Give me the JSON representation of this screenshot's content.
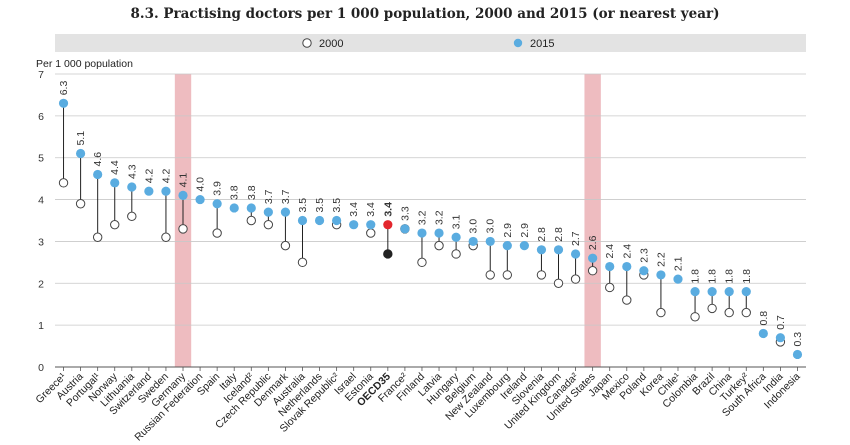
{
  "title": "8.3. Practising doctors per 1 000 population, 2000 and 2015 (or nearest year)",
  "chart_data": {
    "type": "dot",
    "title": "8.3. Practising doctors per 1 000 population, 2000 and 2015 (or nearest year)",
    "ylabel": "Per 1 000 population",
    "ylim": [
      0,
      7
    ],
    "yticks": [
      "0",
      "1",
      "2",
      "3",
      "4",
      "5",
      "6",
      "7"
    ],
    "grid": true,
    "legend_position": "top",
    "colors": {
      "y2000_fill": "#ffffff",
      "y2000_stroke": "#444444",
      "y2015": "#5aace0",
      "oecd2015": "#e3262d",
      "oecd2000": "#222222",
      "highlight_band": "#eebcc0",
      "legend_bg": "#e3e3e3",
      "label": "#333333"
    },
    "legend": [
      {
        "name": "2000",
        "marker": "hollow"
      },
      {
        "name": "2015",
        "marker": "filled"
      }
    ],
    "highlighted_categories": [
      "Germany",
      "United States"
    ],
    "emphasized_category": "OECD35",
    "categories": [
      "Greece¹",
      "Austria",
      "Portugal¹",
      "Norway",
      "Lithuania",
      "Switzerland",
      "Sweden",
      "Germany",
      "Russian Federation",
      "Spain",
      "Italy",
      "Iceland²",
      "Czech Republic",
      "Denmark",
      "Australia",
      "Netherlands",
      "Slovak Republic²",
      "Israel",
      "Estonia",
      "OECD35",
      "France²",
      "Finland",
      "Latvia",
      "Hungary",
      "Belgium",
      "New Zealand",
      "Luxembourg",
      "Ireland",
      "Slovenia",
      "United Kingdom",
      "Canada²",
      "United States",
      "Japan",
      "Mexico",
      "Poland",
      "Korea",
      "Chile¹",
      "Colombia",
      "Brazil",
      "China",
      "Turkey²",
      "South Africa",
      "India",
      "Indonesia"
    ],
    "series": [
      {
        "name": "2000",
        "values": [
          4.4,
          3.9,
          3.1,
          3.4,
          3.6,
          null,
          3.1,
          3.3,
          null,
          3.2,
          null,
          3.5,
          3.4,
          2.9,
          2.5,
          null,
          3.4,
          null,
          3.2,
          2.7,
          3.3,
          2.5,
          2.9,
          2.7,
          2.9,
          2.2,
          2.2,
          null,
          2.2,
          2.0,
          2.1,
          2.3,
          1.9,
          1.6,
          2.2,
          1.3,
          null,
          1.2,
          1.4,
          1.3,
          1.3,
          null,
          0.6,
          null
        ]
      },
      {
        "name": "2015",
        "values": [
          6.3,
          5.1,
          4.6,
          4.4,
          4.3,
          4.2,
          4.2,
          4.1,
          4.0,
          3.9,
          3.8,
          3.8,
          3.7,
          3.7,
          3.5,
          3.5,
          3.5,
          3.4,
          3.4,
          3.4,
          3.3,
          3.2,
          3.2,
          3.1,
          3.0,
          3.0,
          2.9,
          2.9,
          2.8,
          2.8,
          2.7,
          2.6,
          2.4,
          2.4,
          2.3,
          2.2,
          2.1,
          1.8,
          1.8,
          1.8,
          1.8,
          0.8,
          0.7,
          0.3
        ]
      }
    ],
    "value_labels": [
      "6.3",
      "5.1",
      "4.6",
      "4.4",
      "4.3",
      "4.2",
      "4.2",
      "4.1",
      "4.0",
      "3.9",
      "3.8",
      "3.8",
      "3.7",
      "3.7",
      "3.5",
      "3.5",
      "3.5",
      "3.4",
      "3.4",
      "3.4",
      "3.3",
      "3.2",
      "3.2",
      "3.1",
      "3.0",
      "3.0",
      "2.9",
      "2.9",
      "2.8",
      "2.8",
      "2.7",
      "2.6",
      "2.4",
      "2.4",
      "2.3",
      "2.2",
      "2.1",
      "1.8",
      "1.8",
      "1.8",
      "1.8",
      "0.8",
      "0.7",
      "0.3"
    ]
  }
}
